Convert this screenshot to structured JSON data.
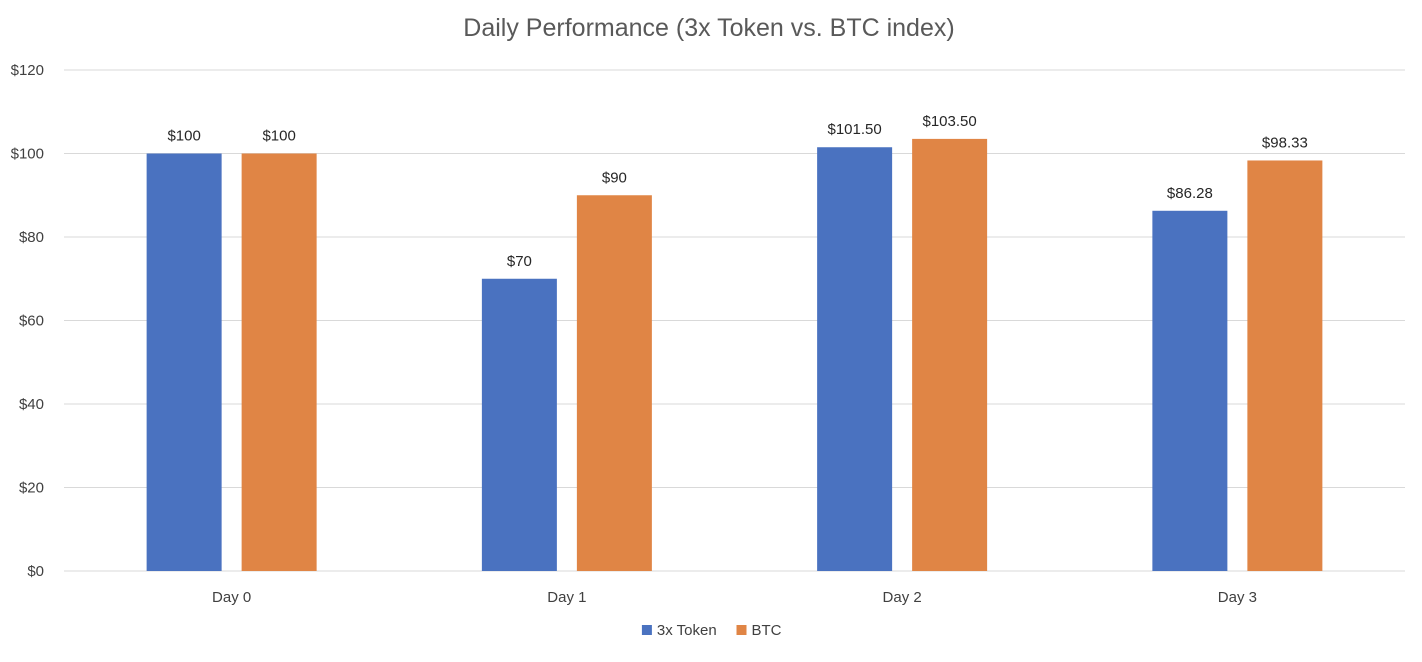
{
  "chart_data": {
    "type": "bar",
    "title": "Daily Performance (3x Token vs. BTC index)",
    "xlabel": "",
    "ylabel": "",
    "categories": [
      "Day 0",
      "Day 1",
      "Day 2",
      "Day 3"
    ],
    "series": [
      {
        "name": "3x Token",
        "color": "#4a72c0",
        "values": [
          100,
          70,
          101.5,
          86.28
        ],
        "labels": [
          "$100",
          "$70",
          "$101.50",
          "$86.28"
        ]
      },
      {
        "name": "BTC",
        "color": "#e08545",
        "values": [
          100,
          90,
          103.5,
          98.33
        ],
        "labels": [
          "$100",
          "$90",
          "$103.50",
          "$98.33"
        ]
      }
    ],
    "ylim": [
      0,
      120
    ],
    "yticks": [
      0,
      20,
      40,
      60,
      80,
      100,
      120
    ],
    "ytick_labels": [
      "$0",
      "$20",
      "$40",
      "$60",
      "$80",
      "$100",
      "$120"
    ],
    "grid": true,
    "legend_position": "bottom-center"
  }
}
